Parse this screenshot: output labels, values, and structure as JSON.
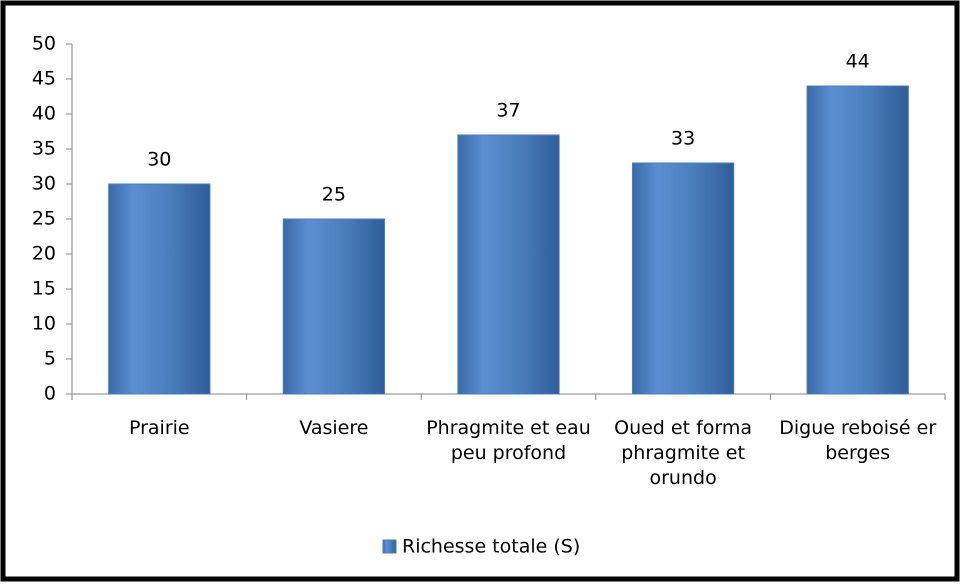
{
  "chart_data": {
    "type": "bar",
    "categories": [
      "Prairie",
      "Vasiere",
      "Phragmite et eau peu profond",
      "Oued et forma phragmite et orundo",
      "Digue reboisé er berges"
    ],
    "series": [
      {
        "name": "Richesse totale (S)",
        "color": "#4a7ebb",
        "values": [
          30,
          25,
          37,
          33,
          44
        ]
      }
    ],
    "ylim": [
      0,
      50
    ],
    "yticks": [
      0,
      5,
      10,
      15,
      20,
      25,
      30,
      35,
      40,
      45,
      50
    ],
    "grid": false,
    "legend": "bottom"
  }
}
